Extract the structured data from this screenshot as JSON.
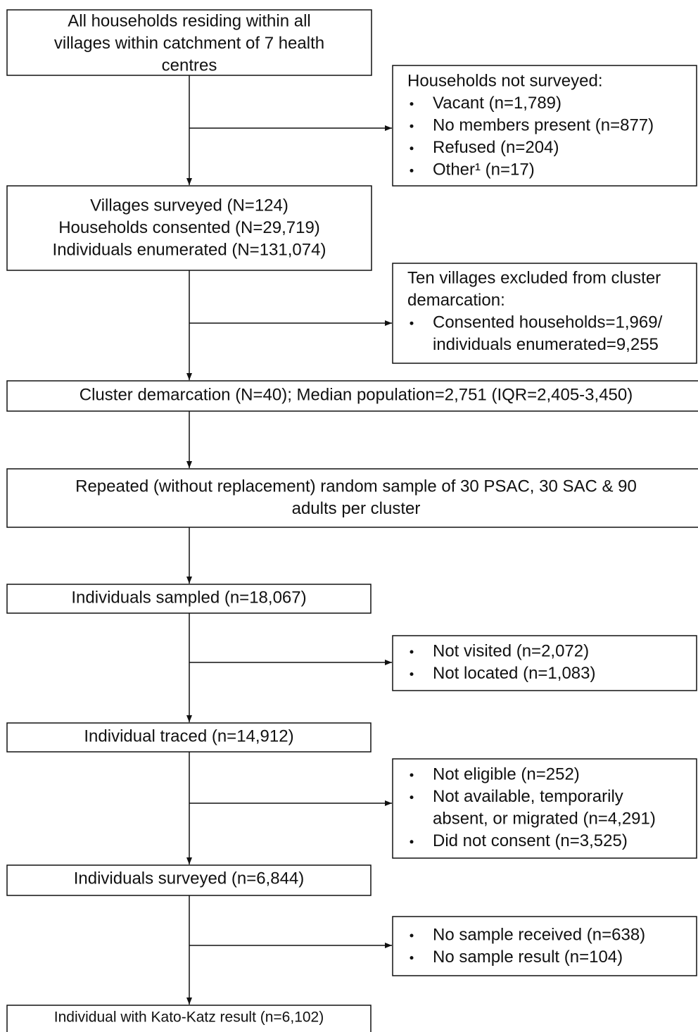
{
  "nodes": [
    {
      "lines": [
        "All households residing within all",
        "villages within catchment of 7 health",
        "centres"
      ]
    },
    {
      "lines": [
        "Villages surveyed (N=124)",
        "Households consented (N=29,719)",
        "Individuals enumerated (N=131,074)"
      ]
    },
    {
      "lines": [
        "Cluster demarcation (N=40); Median population=2,751 (IQR=2,405-3,450)"
      ]
    },
    {
      "lines": [
        "Repeated (without replacement) random sample of 30 PSAC, 30 SAC & 90",
        "adults per cluster"
      ]
    },
    {
      "lines": [
        "Individuals sampled (n=18,067)"
      ]
    },
    {
      "lines": [
        "Individual traced (n=14,912)"
      ]
    },
    {
      "lines": [
        "Individuals surveyed (n=6,844)"
      ]
    },
    {
      "lines": [
        "Individual with Kato-Katz result (n=6,102)"
      ]
    }
  ],
  "exclusions": [
    {
      "heading": [
        "Households not surveyed:"
      ],
      "bullets": [
        [
          "Vacant (n=1,789)"
        ],
        [
          "No members present (n=877)"
        ],
        [
          "Refused (n=204)"
        ],
        [
          "Other¹ (n=17)"
        ]
      ]
    },
    {
      "heading": [
        "Ten villages excluded from cluster",
        "demarcation:"
      ],
      "bullets": [
        [
          "Consented households=1,969/",
          "individuals enumerated=9,255"
        ]
      ]
    },
    {
      "bullets": [
        [
          "Not visited (n=2,072)"
        ],
        [
          "Not located (n=1,083)"
        ]
      ]
    },
    {
      "bullets": [
        [
          "Not eligible (n=252)"
        ],
        [
          "Not available, temporarily",
          "absent, or migrated (n=4,291)"
        ],
        [
          "Did not consent (n=3,525)"
        ]
      ]
    },
    {
      "bullets": [
        [
          "No sample received (n=638)"
        ],
        [
          "No sample result (n=104)"
        ]
      ]
    }
  ]
}
